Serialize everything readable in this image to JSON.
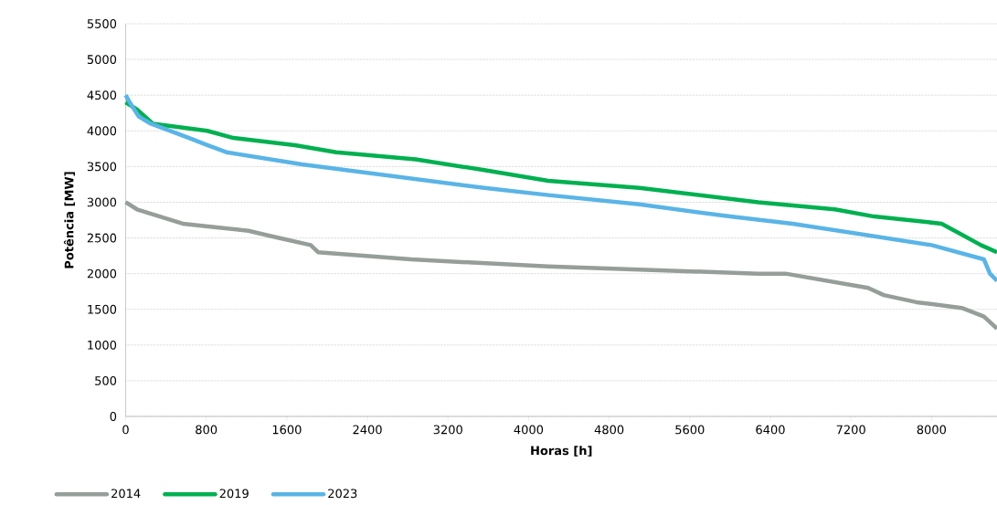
{
  "chart_data": {
    "type": "line",
    "xlabel": "Horas [h]",
    "ylabel": "Potência [MW]",
    "xlim": [
      0,
      8650
    ],
    "ylim": [
      0,
      5500
    ],
    "xticks": [
      0,
      800,
      1600,
      2400,
      3200,
      4000,
      4800,
      5600,
      6400,
      7200,
      8000
    ],
    "yticks": [
      0,
      500,
      1000,
      1500,
      2000,
      2500,
      3000,
      3500,
      4000,
      4500,
      5000,
      5500
    ],
    "grid": "y",
    "legend": "bottom",
    "marker": "none",
    "line_style": "solid",
    "series": [
      {
        "name": "2014",
        "color": "#959e98",
        "x": [
          0,
          113,
          340,
          567,
          1220,
          1520,
          1837,
          1910,
          2835,
          4195,
          6280,
          6550,
          7370,
          7525,
          7850,
          8300,
          8520,
          8650
        ],
        "values": [
          3000,
          2900,
          2800,
          2700,
          2600,
          2500,
          2400,
          2300,
          2200,
          2100,
          2000,
          2000,
          1800,
          1700,
          1600,
          1520,
          1400,
          1230
        ]
      },
      {
        "name": "2019",
        "color": "#00b050",
        "x": [
          0,
          113,
          270,
          810,
          1070,
          1680,
          2090,
          2880,
          3560,
          4195,
          5100,
          6280,
          7040,
          7430,
          8100,
          8490,
          8650
        ],
        "values": [
          4400,
          4300,
          4100,
          4000,
          3900,
          3800,
          3700,
          3600,
          3450,
          3300,
          3200,
          3000,
          2900,
          2800,
          2700,
          2400,
          2300
        ]
      },
      {
        "name": "2023",
        "color": "#5ab4e6",
        "x": [
          0,
          40,
          130,
          250,
          630,
          810,
          1000,
          1750,
          3560,
          4195,
          5100,
          6000,
          6620,
          8000,
          8520,
          8580,
          8650
        ],
        "values": [
          4500,
          4400,
          4200,
          4100,
          3900,
          3800,
          3700,
          3530,
          3200,
          3100,
          2970,
          2800,
          2700,
          2400,
          2200,
          2000,
          1900
        ]
      }
    ]
  }
}
